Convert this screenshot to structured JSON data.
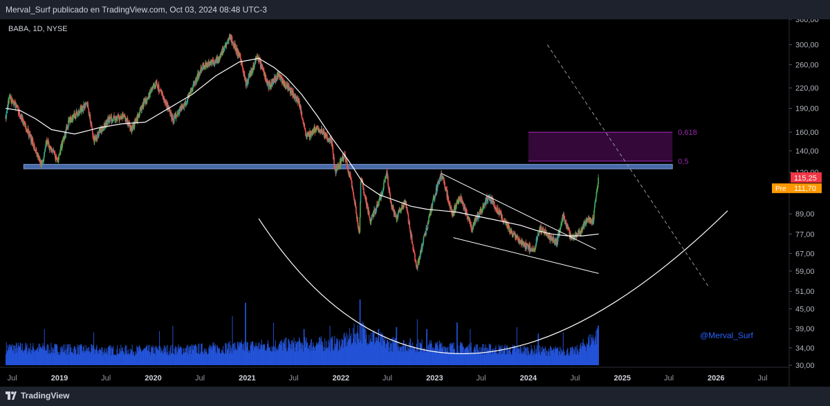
{
  "header": {
    "published_text": "Merval_Surf publicado en TradingView.com, Oct 03, 2024 08:48 UTC-3"
  },
  "footer": {
    "brand": "TradingView"
  },
  "colors": {
    "up": "#26a69a",
    "down": "#ef5350",
    "upBright": "#4caf50",
    "volume": "#2962ff",
    "fib": "#9c27b0",
    "fibFill": "#3a0a3f",
    "support": "#4a6fb3",
    "lastPrice": "#f23645",
    "pre": "#ff9800",
    "watermark": "#2962ff"
  },
  "chart_data": {
    "type": "candlestick",
    "symbol_label": "BABA, 1D, NYSE",
    "watermark": "@Merval_Surf",
    "y_scale": "log",
    "ylim": [
      30,
      360
    ],
    "y_ticks": [
      "360,00",
      "300,00",
      "260,00",
      "220,00",
      "190,00",
      "160,00",
      "140,00",
      "120,00",
      "89,00",
      "77,00",
      "67,00",
      "59,00",
      "51,00",
      "45,00",
      "39,00",
      "34,00",
      "30,00"
    ],
    "y_tick_values": [
      360,
      300,
      260,
      220,
      190,
      160,
      140,
      120,
      89,
      77,
      67,
      59,
      51,
      45,
      39,
      34,
      30
    ],
    "x_ticks": [
      "Jul",
      "2019",
      "Jul",
      "2020",
      "Jul",
      "2021",
      "Jul",
      "2022",
      "Jul",
      "2023",
      "Jul",
      "2024",
      "Jul",
      "2025",
      "Jul",
      "2026",
      "Jul"
    ],
    "x_tick_dates": [
      "2018-07-01",
      "2019-01-01",
      "2019-07-01",
      "2020-01-01",
      "2020-07-01",
      "2021-01-01",
      "2021-07-01",
      "2022-01-01",
      "2022-07-01",
      "2023-01-01",
      "2023-07-01",
      "2024-01-01",
      "2024-07-01",
      "2025-01-01",
      "2025-07-01",
      "2026-01-01",
      "2026-07-01"
    ],
    "price_path": [
      [
        "2018-06-05",
        178
      ],
      [
        "2018-06-20",
        205
      ],
      [
        "2018-07-20",
        190
      ],
      [
        "2018-09-01",
        160
      ],
      [
        "2018-10-25",
        125
      ],
      [
        "2018-11-10",
        150
      ],
      [
        "2018-12-24",
        130
      ],
      [
        "2019-02-10",
        175
      ],
      [
        "2019-04-20",
        195
      ],
      [
        "2019-05-15",
        150
      ],
      [
        "2019-07-10",
        175
      ],
      [
        "2019-09-10",
        180
      ],
      [
        "2019-10-10",
        162
      ],
      [
        "2019-12-01",
        200
      ],
      [
        "2020-01-13",
        228
      ],
      [
        "2020-03-18",
        175
      ],
      [
        "2020-05-10",
        200
      ],
      [
        "2020-07-10",
        255
      ],
      [
        "2020-09-10",
        270
      ],
      [
        "2020-10-27",
        318
      ],
      [
        "2020-12-10",
        265
      ],
      [
        "2020-12-28",
        225
      ],
      [
        "2021-02-10",
        275
      ],
      [
        "2021-03-25",
        222
      ],
      [
        "2021-05-01",
        240
      ],
      [
        "2021-07-20",
        200
      ],
      [
        "2021-08-20",
        155
      ],
      [
        "2021-10-01",
        165
      ],
      [
        "2021-11-25",
        150
      ],
      [
        "2021-12-10",
        120
      ],
      [
        "2022-01-15",
        135
      ],
      [
        "2022-02-10",
        112
      ],
      [
        "2022-03-14",
        76
      ],
      [
        "2022-03-20",
        115
      ],
      [
        "2022-04-25",
        84
      ],
      [
        "2022-06-05",
        100
      ],
      [
        "2022-06-28",
        120
      ],
      [
        "2022-07-15",
        95
      ],
      [
        "2022-08-05",
        87
      ],
      [
        "2022-09-10",
        97
      ],
      [
        "2022-09-28",
        78
      ],
      [
        "2022-10-24",
        60
      ],
      [
        "2022-12-01",
        80
      ],
      [
        "2023-01-27",
        119
      ],
      [
        "2023-03-10",
        88
      ],
      [
        "2023-04-10",
        100
      ],
      [
        "2023-05-25",
        80
      ],
      [
        "2023-07-30",
        101
      ],
      [
        "2023-09-10",
        90
      ],
      [
        "2023-10-25",
        78
      ],
      [
        "2023-12-10",
        72
      ],
      [
        "2024-01-22",
        68
      ],
      [
        "2024-02-15",
        80
      ],
      [
        "2024-04-20",
        72
      ],
      [
        "2024-05-15",
        88
      ],
      [
        "2024-06-15",
        75
      ],
      [
        "2024-07-20",
        78
      ],
      [
        "2024-08-15",
        85
      ],
      [
        "2024-09-10",
        85
      ],
      [
        "2024-09-30",
        115
      ]
    ],
    "ma_path": [
      [
        "2018-06-05",
        190
      ],
      [
        "2018-08-01",
        187
      ],
      [
        "2018-10-01",
        176
      ],
      [
        "2018-12-01",
        163
      ],
      [
        "2019-03-01",
        158
      ],
      [
        "2019-06-01",
        165
      ],
      [
        "2019-09-01",
        170
      ],
      [
        "2019-12-01",
        172
      ],
      [
        "2020-03-01",
        190
      ],
      [
        "2020-06-01",
        210
      ],
      [
        "2020-09-01",
        240
      ],
      [
        "2020-12-01",
        265
      ],
      [
        "2021-02-15",
        272
      ],
      [
        "2021-04-15",
        255
      ],
      [
        "2021-06-01",
        238
      ],
      [
        "2021-08-01",
        210
      ],
      [
        "2021-10-01",
        180
      ],
      [
        "2021-12-01",
        152
      ],
      [
        "2022-02-01",
        130
      ],
      [
        "2022-04-01",
        110
      ],
      [
        "2022-06-01",
        102
      ],
      [
        "2022-08-01",
        98
      ],
      [
        "2022-10-01",
        94
      ],
      [
        "2022-12-01",
        92
      ],
      [
        "2023-02-01",
        91
      ],
      [
        "2023-04-01",
        90
      ],
      [
        "2023-06-01",
        88
      ],
      [
        "2023-08-01",
        86
      ],
      [
        "2023-10-01",
        84
      ],
      [
        "2023-12-01",
        82
      ],
      [
        "2024-02-01",
        79
      ],
      [
        "2024-04-01",
        77
      ],
      [
        "2024-06-01",
        76
      ],
      [
        "2024-08-01",
        76
      ],
      [
        "2024-10-01",
        77
      ]
    ],
    "volume_level": [
      [
        "2018-06-05",
        0.28
      ],
      [
        "2019-01-01",
        0.26
      ],
      [
        "2019-07-01",
        0.24
      ],
      [
        "2020-01-01",
        0.24
      ],
      [
        "2020-07-01",
        0.26
      ],
      [
        "2021-01-01",
        0.3
      ],
      [
        "2021-07-01",
        0.33
      ],
      [
        "2022-01-01",
        0.35
      ],
      [
        "2022-03-15",
        0.55
      ],
      [
        "2022-07-01",
        0.34
      ],
      [
        "2023-01-01",
        0.3
      ],
      [
        "2023-07-01",
        0.26
      ],
      [
        "2024-01-01",
        0.24
      ],
      [
        "2024-07-01",
        0.22
      ],
      [
        "2024-09-30",
        0.5
      ]
    ],
    "volume_spikes": [
      [
        "2018-11-02",
        0.55
      ],
      [
        "2019-05-13",
        0.5
      ],
      [
        "2020-01-24",
        0.52
      ],
      [
        "2020-03-16",
        0.6
      ],
      [
        "2020-11-03",
        0.75
      ],
      [
        "2020-12-24",
        0.95
      ],
      [
        "2021-04-12",
        0.65
      ],
      [
        "2021-08-09",
        0.55
      ],
      [
        "2021-11-18",
        0.6
      ],
      [
        "2022-03-15",
        1.0
      ],
      [
        "2022-03-16",
        0.85
      ],
      [
        "2022-05-26",
        0.55
      ],
      [
        "2022-08-04",
        0.58
      ],
      [
        "2022-10-24",
        0.7
      ],
      [
        "2022-11-30",
        0.55
      ],
      [
        "2023-03-28",
        0.65
      ],
      [
        "2023-05-18",
        0.55
      ],
      [
        "2023-11-16",
        0.58
      ],
      [
        "2024-02-07",
        0.48
      ],
      [
        "2024-05-14",
        0.5
      ],
      [
        "2024-09-24",
        0.55
      ],
      [
        "2024-09-30",
        0.6
      ]
    ],
    "support_zone": {
      "low": 123,
      "high": 127,
      "start": "2018-08-15",
      "end": "2025-07-15"
    },
    "fib_levels": [
      {
        "label": "0,618",
        "value": 160
      },
      {
        "label": "0,5",
        "value": 130
      }
    ],
    "fib_box": {
      "start": "2024-01-01",
      "end": "2025-07-15",
      "low": 130,
      "high": 160
    },
    "trendlines": [
      {
        "from": [
          "2023-01-27",
          119
        ],
        "to": [
          "2024-09-20",
          69
        ]
      },
      {
        "from": [
          "2023-03-15",
          75
        ],
        "to": [
          "2024-10-01",
          58
        ]
      }
    ],
    "dashed_line": {
      "from": [
        "2024-03-15",
        300
      ],
      "to": [
        "2025-12-01",
        53
      ]
    },
    "arc": {
      "from": [
        "2021-02-15",
        86
      ],
      "control": [
        "2023-01-15",
        12
      ],
      "to": [
        "2026-02-15",
        91
      ]
    },
    "last_price": {
      "label": "115,25",
      "value": 115.25
    },
    "pre_market": {
      "tag": "Pre",
      "label": "111,70",
      "value": 111.7
    }
  }
}
